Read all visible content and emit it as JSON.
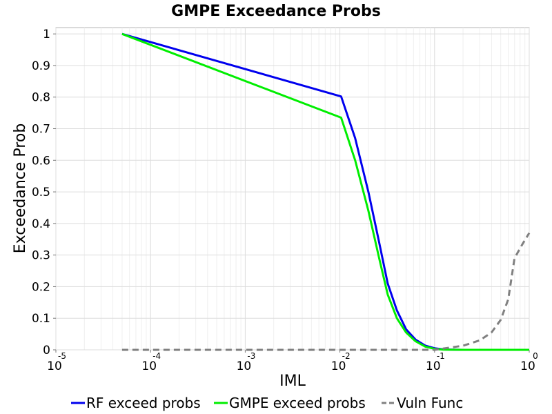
{
  "chart_data": {
    "type": "line",
    "title": "GMPE Exceedance Probs",
    "xlabel": "IML",
    "ylabel": "Exceedance Prob",
    "x_scale": "log",
    "xlim": [
      1e-05,
      1
    ],
    "ylim": [
      0,
      1.02
    ],
    "grid": true,
    "legend_position": "bottom",
    "x_ticks": [
      {
        "base": "10",
        "exp": "-5",
        "value": 1e-05
      },
      {
        "base": "10",
        "exp": "-4",
        "value": 0.0001
      },
      {
        "base": "10",
        "exp": "-3",
        "value": 0.001
      },
      {
        "base": "10",
        "exp": "-2",
        "value": 0.01
      },
      {
        "base": "10",
        "exp": "-1",
        "value": 0.1
      },
      {
        "base": "10",
        "exp": "0",
        "value": 1
      }
    ],
    "y_ticks": [
      {
        "label": "0",
        "value": 0
      },
      {
        "label": "0.1",
        "value": 0.1
      },
      {
        "label": "0.2",
        "value": 0.2
      },
      {
        "label": "0.3",
        "value": 0.3
      },
      {
        "label": "0.4",
        "value": 0.4
      },
      {
        "label": "0.5",
        "value": 0.5
      },
      {
        "label": "0.6",
        "value": 0.6
      },
      {
        "label": "0.7",
        "value": 0.7
      },
      {
        "label": "0.8",
        "value": 0.8
      },
      {
        "label": "0.9",
        "value": 0.9
      },
      {
        "label": "1",
        "value": 1
      }
    ],
    "series": [
      {
        "name": "RF exceed probs",
        "color": "#0000ee",
        "style": "solid",
        "points": [
          [
            5e-05,
            1.0
          ],
          [
            0.0103,
            0.802
          ],
          [
            0.0145,
            0.67
          ],
          [
            0.02,
            0.5
          ],
          [
            0.026,
            0.34
          ],
          [
            0.032,
            0.21
          ],
          [
            0.04,
            0.125
          ],
          [
            0.05,
            0.065
          ],
          [
            0.063,
            0.032
          ],
          [
            0.08,
            0.013
          ],
          [
            0.1,
            0.005
          ],
          [
            0.125,
            0.001
          ],
          [
            0.2,
            0.0
          ],
          [
            1.0,
            0.0
          ]
        ]
      },
      {
        "name": "GMPE exceed probs",
        "color": "#00ee00",
        "style": "solid",
        "points": [
          [
            5e-05,
            1.0
          ],
          [
            0.0103,
            0.735
          ],
          [
            0.0145,
            0.6
          ],
          [
            0.02,
            0.44
          ],
          [
            0.026,
            0.29
          ],
          [
            0.032,
            0.175
          ],
          [
            0.04,
            0.1
          ],
          [
            0.05,
            0.055
          ],
          [
            0.063,
            0.027
          ],
          [
            0.08,
            0.01
          ],
          [
            0.1,
            0.003
          ],
          [
            0.125,
            0.0005
          ],
          [
            0.2,
            0.0
          ],
          [
            1.0,
            0.0
          ]
        ]
      },
      {
        "name": "Vuln Func",
        "color": "#808080",
        "style": "dashed",
        "points": [
          [
            5e-05,
            0.0
          ],
          [
            0.1,
            0.0
          ],
          [
            0.13,
            0.005
          ],
          [
            0.2,
            0.013
          ],
          [
            0.3,
            0.03
          ],
          [
            0.4,
            0.055
          ],
          [
            0.5,
            0.095
          ],
          [
            0.6,
            0.16
          ],
          [
            0.7,
            0.29
          ],
          [
            0.85,
            0.335
          ],
          [
            1.0,
            0.37
          ]
        ]
      }
    ]
  }
}
